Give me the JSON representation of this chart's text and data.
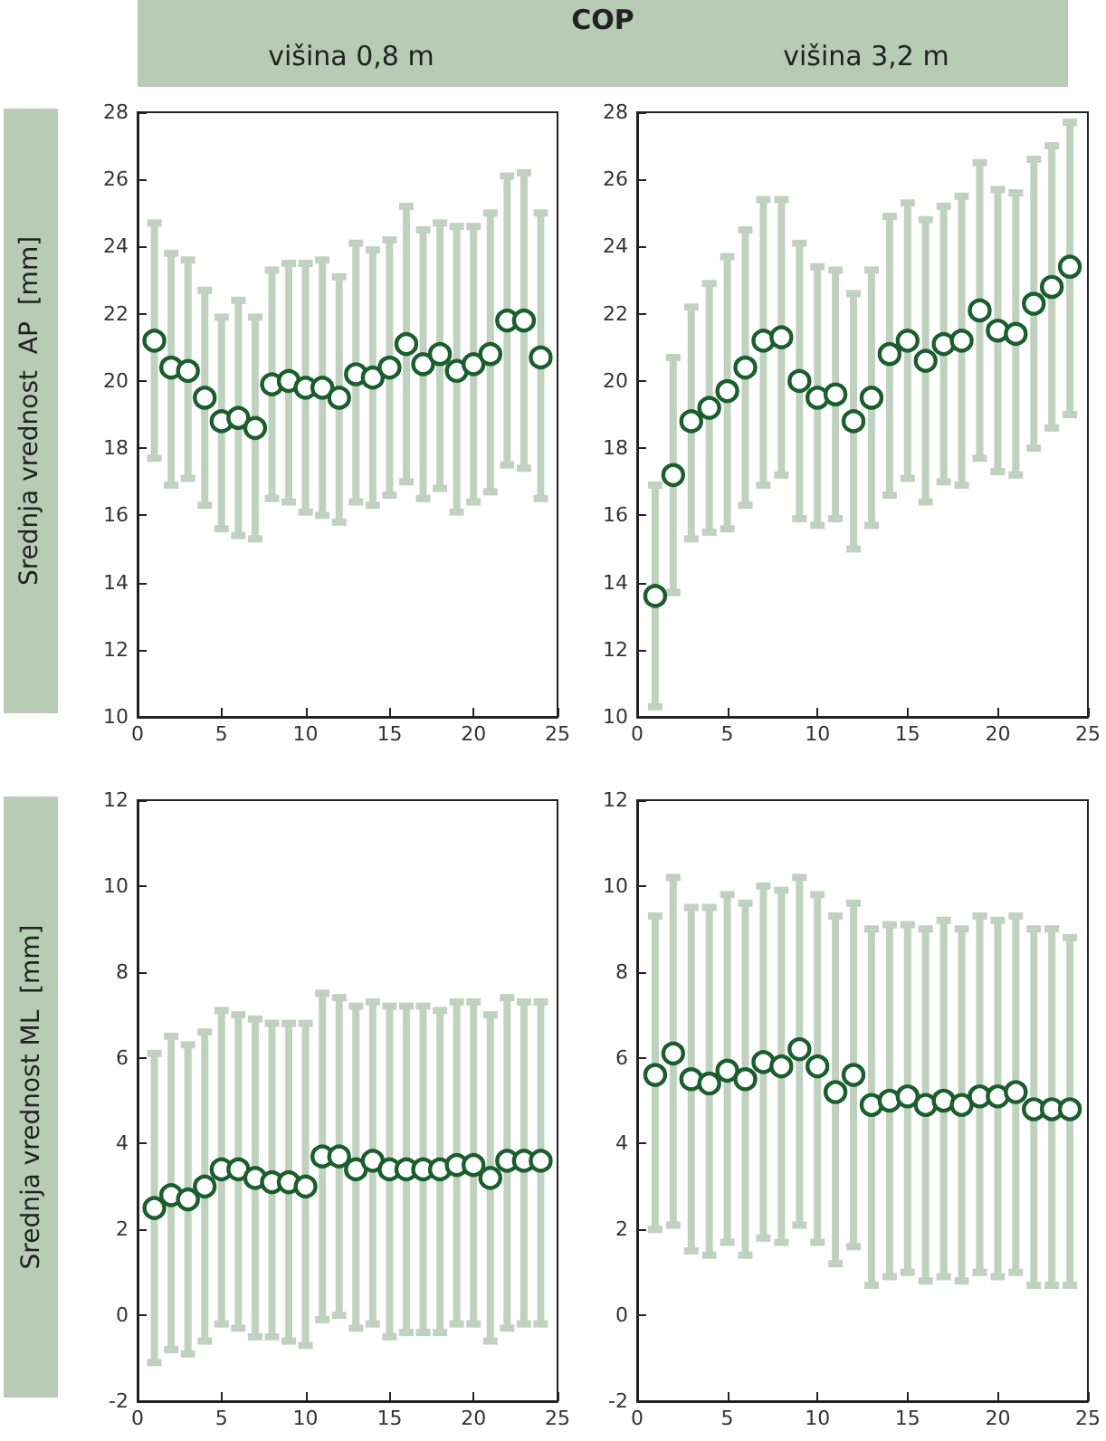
{
  "chart_data": [
    {
      "type": "scatter",
      "title": "COP",
      "subtitle": "višina 0,8 m",
      "ylabel": "Srednja vrednost  AP  [mm]",
      "x": [
        1,
        2,
        3,
        4,
        5,
        6,
        7,
        8,
        9,
        10,
        11,
        12,
        13,
        14,
        15,
        16,
        17,
        18,
        19,
        20,
        21,
        22,
        23,
        24
      ],
      "xlim": [
        0,
        25
      ],
      "xticks": [
        0,
        5,
        10,
        15,
        20,
        25
      ],
      "ylim": [
        10,
        28
      ],
      "yticks": [
        10,
        12,
        14,
        16,
        18,
        20,
        22,
        24,
        26,
        28
      ],
      "marker": "circle",
      "grid": false,
      "series": [
        {
          "color": "#1a5e2e",
          "values": [
            21.2,
            20.4,
            20.3,
            19.5,
            18.8,
            18.9,
            18.6,
            19.9,
            20.0,
            19.8,
            19.8,
            19.5,
            20.2,
            20.1,
            20.4,
            21.1,
            20.5,
            20.8,
            20.3,
            20.5,
            20.8,
            21.8,
            21.8,
            20.7
          ],
          "errors": [
            [
              17.7,
              24.7
            ],
            [
              16.9,
              23.8
            ],
            [
              17.1,
              23.6
            ],
            [
              16.3,
              22.7
            ],
            [
              15.6,
              21.9
            ],
            [
              15.4,
              22.4
            ],
            [
              15.3,
              21.9
            ],
            [
              16.5,
              23.3
            ],
            [
              16.4,
              23.5
            ],
            [
              16.1,
              23.5
            ],
            [
              16.0,
              23.6
            ],
            [
              15.8,
              23.1
            ],
            [
              16.4,
              24.1
            ],
            [
              16.3,
              23.9
            ],
            [
              16.6,
              24.2
            ],
            [
              17.0,
              25.2
            ],
            [
              16.5,
              24.5
            ],
            [
              16.8,
              24.7
            ],
            [
              16.1,
              24.6
            ],
            [
              16.4,
              24.6
            ],
            [
              16.7,
              25.0
            ],
            [
              17.5,
              26.1
            ],
            [
              17.4,
              26.2
            ],
            [
              16.5,
              25.0
            ]
          ]
        }
      ]
    },
    {
      "type": "scatter",
      "subtitle": "višina 3,2 m",
      "x": [
        1,
        2,
        3,
        4,
        5,
        6,
        7,
        8,
        9,
        10,
        11,
        12,
        13,
        14,
        15,
        16,
        17,
        18,
        19,
        20,
        21,
        22,
        23,
        24
      ],
      "xlim": [
        0,
        25
      ],
      "xticks": [
        0,
        5,
        10,
        15,
        20,
        25
      ],
      "ylim": [
        10,
        28
      ],
      "yticks": [
        10,
        12,
        14,
        16,
        18,
        20,
        22,
        24,
        26,
        28
      ],
      "marker": "circle",
      "grid": false,
      "series": [
        {
          "color": "#1a5e2e",
          "values": [
            13.6,
            17.2,
            18.8,
            19.2,
            19.7,
            20.4,
            21.2,
            21.3,
            20.0,
            19.5,
            19.6,
            18.8,
            19.5,
            20.8,
            21.2,
            20.6,
            21.1,
            21.2,
            22.1,
            21.5,
            21.4,
            22.3,
            22.8,
            23.4
          ],
          "errors": [
            [
              10.3,
              16.9
            ],
            [
              13.7,
              20.7
            ],
            [
              15.3,
              22.2
            ],
            [
              15.5,
              22.9
            ],
            [
              15.6,
              23.7
            ],
            [
              16.3,
              24.5
            ],
            [
              16.9,
              25.4
            ],
            [
              17.2,
              25.4
            ],
            [
              15.9,
              24.1
            ],
            [
              15.7,
              23.4
            ],
            [
              15.9,
              23.3
            ],
            [
              15.0,
              22.6
            ],
            [
              15.7,
              23.3
            ],
            [
              16.6,
              24.9
            ],
            [
              17.1,
              25.3
            ],
            [
              16.4,
              24.8
            ],
            [
              17.0,
              25.2
            ],
            [
              16.9,
              25.5
            ],
            [
              17.7,
              26.5
            ],
            [
              17.3,
              25.7
            ],
            [
              17.2,
              25.6
            ],
            [
              18.0,
              26.6
            ],
            [
              18.6,
              27.0
            ],
            [
              19.0,
              27.7
            ]
          ]
        }
      ]
    },
    {
      "type": "scatter",
      "ylabel": "Srednja vrednost ML  [mm]",
      "x": [
        1,
        2,
        3,
        4,
        5,
        6,
        7,
        8,
        9,
        10,
        11,
        12,
        13,
        14,
        15,
        16,
        17,
        18,
        19,
        20,
        21,
        22,
        23,
        24
      ],
      "xlim": [
        0,
        25
      ],
      "xticks": [
        0,
        5,
        10,
        15,
        20,
        25
      ],
      "ylim": [
        -2,
        12
      ],
      "yticks": [
        -2,
        0,
        2,
        4,
        6,
        8,
        10,
        12
      ],
      "marker": "circle",
      "grid": false,
      "series": [
        {
          "color": "#1a5e2e",
          "values": [
            2.5,
            2.8,
            2.7,
            3.0,
            3.4,
            3.4,
            3.2,
            3.1,
            3.1,
            3.0,
            3.7,
            3.7,
            3.4,
            3.6,
            3.4,
            3.4,
            3.4,
            3.4,
            3.5,
            3.5,
            3.2,
            3.6,
            3.6,
            3.6
          ],
          "errors": [
            [
              -1.1,
              6.1
            ],
            [
              -0.8,
              6.5
            ],
            [
              -0.9,
              6.3
            ],
            [
              -0.6,
              6.6
            ],
            [
              -0.2,
              7.1
            ],
            [
              -0.3,
              7.0
            ],
            [
              -0.5,
              6.9
            ],
            [
              -0.5,
              6.8
            ],
            [
              -0.6,
              6.8
            ],
            [
              -0.7,
              6.8
            ],
            [
              -0.1,
              7.5
            ],
            [
              0.0,
              7.4
            ],
            [
              -0.3,
              7.2
            ],
            [
              -0.2,
              7.3
            ],
            [
              -0.5,
              7.2
            ],
            [
              -0.4,
              7.2
            ],
            [
              -0.4,
              7.2
            ],
            [
              -0.4,
              7.1
            ],
            [
              -0.2,
              7.3
            ],
            [
              -0.2,
              7.3
            ],
            [
              -0.6,
              7.0
            ],
            [
              -0.3,
              7.4
            ],
            [
              -0.2,
              7.3
            ],
            [
              -0.2,
              7.3
            ]
          ]
        }
      ]
    },
    {
      "type": "scatter",
      "x": [
        1,
        2,
        3,
        4,
        5,
        6,
        7,
        8,
        9,
        10,
        11,
        12,
        13,
        14,
        15,
        16,
        17,
        18,
        19,
        20,
        21,
        22,
        23,
        24
      ],
      "xlim": [
        0,
        25
      ],
      "xticks": [
        0,
        5,
        10,
        15,
        20,
        25
      ],
      "ylim": [
        -2,
        12
      ],
      "yticks": [
        -2,
        0,
        2,
        4,
        6,
        8,
        10,
        12
      ],
      "marker": "circle",
      "grid": false,
      "series": [
        {
          "color": "#1a5e2e",
          "values": [
            5.6,
            6.1,
            5.5,
            5.4,
            5.7,
            5.5,
            5.9,
            5.8,
            6.2,
            5.8,
            5.2,
            5.6,
            4.9,
            5.0,
            5.1,
            4.9,
            5.0,
            4.9,
            5.1,
            5.1,
            5.2,
            4.8,
            4.8,
            4.8
          ],
          "errors": [
            [
              2.0,
              9.3
            ],
            [
              2.1,
              10.2
            ],
            [
              1.5,
              9.5
            ],
            [
              1.4,
              9.5
            ],
            [
              1.7,
              9.8
            ],
            [
              1.4,
              9.6
            ],
            [
              1.8,
              10.0
            ],
            [
              1.7,
              9.9
            ],
            [
              2.1,
              10.2
            ],
            [
              1.7,
              9.8
            ],
            [
              1.2,
              9.3
            ],
            [
              1.6,
              9.6
            ],
            [
              0.7,
              9.0
            ],
            [
              0.9,
              9.1
            ],
            [
              1.0,
              9.1
            ],
            [
              0.8,
              9.0
            ],
            [
              0.9,
              9.2
            ],
            [
              0.8,
              9.0
            ],
            [
              1.0,
              9.3
            ],
            [
              0.9,
              9.2
            ],
            [
              1.0,
              9.3
            ],
            [
              0.7,
              9.0
            ],
            [
              0.7,
              9.0
            ],
            [
              0.7,
              8.8
            ]
          ]
        }
      ]
    }
  ]
}
